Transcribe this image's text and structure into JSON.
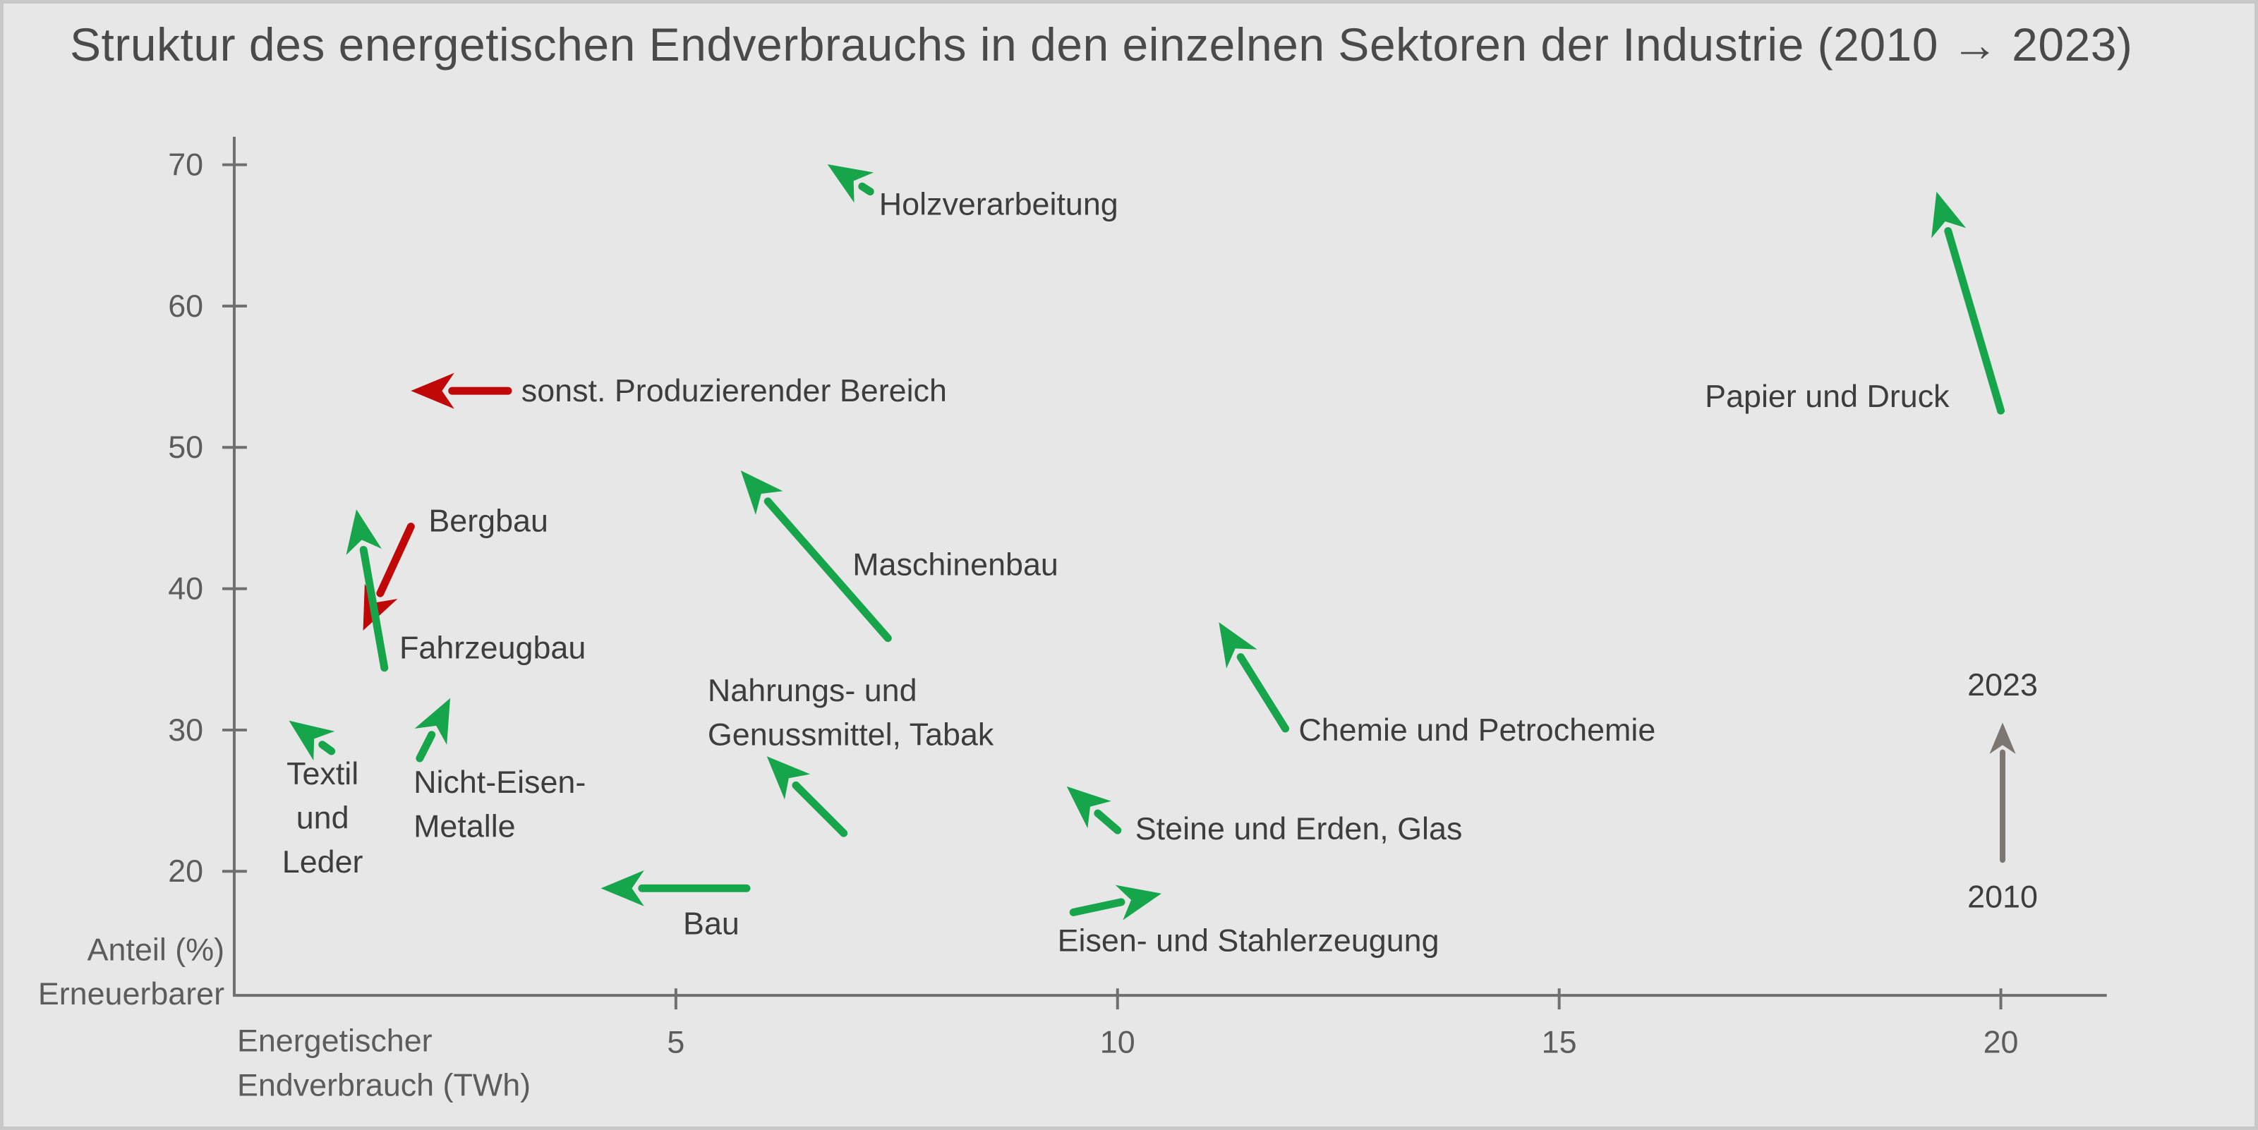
{
  "chart_data": {
    "type": "scatter",
    "subtype": "arrow-change-plot",
    "title": "Struktur des energetischen Endverbrauchs in den einzelnen Sektoren der Industrie (2010 → 2023)",
    "xlabel_lines": [
      "Energetischer",
      "Endverbrauch (TWh)"
    ],
    "ylabel_lines": [
      "Anteil (%)",
      "Erneuerbarer"
    ],
    "x_ticks": [
      5,
      10,
      15,
      20
    ],
    "y_ticks": [
      70,
      60,
      50,
      40,
      30,
      20
    ],
    "xlim": [
      0,
      21.2
    ],
    "ylim": [
      11.2,
      71.8
    ],
    "grid": false,
    "legend_position": "right-middle",
    "colors": {
      "increase": "#17a54b",
      "decrease": "#c00808",
      "axis": "#6f6f6f",
      "tick_text": "#5c5c5c",
      "label_text": "#3d3d3d",
      "title_text": "#4a4a4a",
      "legend_arrow": "#7b7672",
      "background": "#e7e7e7",
      "border": "#c8c8c8"
    },
    "note": "Each arrow runs from the sector position in 2010 (tail) to 2023 (head); x = energetischer Endverbrauch in TWh, y = Anteil Erneuerbarer in %",
    "sectors": [
      {
        "name": "Holzverarbeitung",
        "trend": "increase",
        "x2010": 7.2,
        "y2010": 68.1,
        "x2023": 6.8,
        "y2023": 69.7,
        "label_lines": [
          "Holzverarbeitung"
        ],
        "label_x": 7.3,
        "label_y": 67.2,
        "anchor": "start"
      },
      {
        "name": "sonst. Produzierender Bereich",
        "trend": "decrease",
        "x2010": 3.1,
        "y2010": 54.0,
        "x2023": 2.1,
        "y2023": 54.0,
        "label_lines": [
          "sonst. Produzierender Bereich"
        ],
        "label_x": 3.25,
        "label_y": 54.0,
        "anchor": "start"
      },
      {
        "name": "Bergbau",
        "trend": "decrease",
        "x2010": 2.0,
        "y2010": 44.4,
        "x2023": 1.5,
        "y2023": 37.6,
        "label_lines": [
          "Bergbau"
        ],
        "label_x": 2.2,
        "label_y": 44.8,
        "anchor": "start"
      },
      {
        "name": "Fahrzeugbau",
        "trend": "increase",
        "x2010": 1.7,
        "y2010": 34.4,
        "x2023": 1.4,
        "y2023": 45.0,
        "label_lines": [
          "Fahrzeugbau"
        ],
        "label_x": 1.87,
        "label_y": 35.8,
        "anchor": "start"
      },
      {
        "name": "Maschinenbau",
        "trend": "increase",
        "x2010": 7.4,
        "y2010": 36.5,
        "x2023": 5.8,
        "y2023": 47.9,
        "label_lines": [
          "Maschinenbau"
        ],
        "label_x": 7.0,
        "label_y": 41.7,
        "anchor": "start"
      },
      {
        "name": "Textil und Leder",
        "trend": "increase",
        "x2010": 1.1,
        "y2010": 28.5,
        "x2023": 0.7,
        "y2023": 30.3,
        "label_lines": [
          "Textil",
          "und",
          "Leder"
        ],
        "label_x": 1.0,
        "label_y": 26.9,
        "anchor": "middle"
      },
      {
        "name": "Nicht-Eisen-Metalle",
        "trend": "increase",
        "x2010": 2.1,
        "y2010": 28.0,
        "x2023": 2.4,
        "y2023": 31.7,
        "label_lines": [
          "Nicht-Eisen-",
          "Metalle"
        ],
        "label_x": 2.03,
        "label_y": 26.3,
        "anchor": "start"
      },
      {
        "name": "Nahrungs- und Genussmittel, Tabak",
        "trend": "increase",
        "x2010": 6.9,
        "y2010": 22.7,
        "x2023": 6.1,
        "y2023": 27.7,
        "label_lines": [
          "Nahrungs- und",
          "Genussmittel, Tabak"
        ],
        "label_x": 5.36,
        "label_y": 32.8,
        "anchor": "start"
      },
      {
        "name": "Bau",
        "trend": "increase",
        "x2010": 5.8,
        "y2010": 18.8,
        "x2023": 4.25,
        "y2023": 18.8,
        "label_lines": [
          "Bau"
        ],
        "label_x": 5.4,
        "label_y": 16.3,
        "anchor": "middle"
      },
      {
        "name": "Chemie und Petrochemie",
        "trend": "increase",
        "x2010": 11.9,
        "y2010": 30.1,
        "x2023": 11.2,
        "y2023": 37.1,
        "label_lines": [
          "Chemie und Petrochemie"
        ],
        "label_x": 12.05,
        "label_y": 30.0,
        "anchor": "start"
      },
      {
        "name": "Steine und Erden, Glas",
        "trend": "increase",
        "x2010": 10.0,
        "y2010": 22.9,
        "x2023": 9.5,
        "y2023": 25.6,
        "label_lines": [
          "Steine und Erden, Glas"
        ],
        "label_x": 10.2,
        "label_y": 23.0,
        "anchor": "start"
      },
      {
        "name": "Eisen- und Stahlerzeugung",
        "trend": "increase",
        "x2010": 9.5,
        "y2010": 17.1,
        "x2023": 10.4,
        "y2023": 18.3,
        "label_lines": [
          "Eisen- und Stahlerzeugung"
        ],
        "label_x": 9.32,
        "label_y": 15.1,
        "anchor": "start"
      },
      {
        "name": "Papier und Druck",
        "trend": "increase",
        "x2010": 20.0,
        "y2010": 52.6,
        "x2023": 19.3,
        "y2023": 67.5,
        "label_lines": [
          "Papier und Druck"
        ],
        "label_x": 16.65,
        "label_y": 53.6,
        "anchor": "start"
      }
    ],
    "legend": {
      "top_label": "2023",
      "bottom_label": "2010",
      "x": 20.02,
      "arrow_y_from": 20.8,
      "arrow_y_to": 30.7,
      "top_label_y": 33.2,
      "bottom_label_y": 18.2
    }
  }
}
